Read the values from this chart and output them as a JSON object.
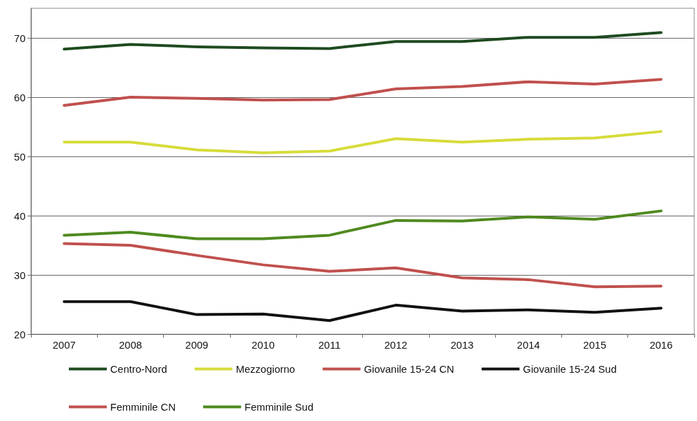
{
  "chart_data": {
    "type": "line",
    "categories": [
      "2007",
      "2008",
      "2009",
      "2010",
      "2011",
      "2012",
      "2013",
      "2014",
      "2015",
      "2016"
    ],
    "series": [
      {
        "name": "Centro-Nord",
        "color": "#1e4a20",
        "values": [
          68.1,
          68.9,
          68.5,
          68.3,
          68.2,
          69.4,
          69.4,
          70.1,
          70.1,
          70.9
        ]
      },
      {
        "name": "Mezzogiorno",
        "color": "#d6dc3a",
        "values": [
          52.4,
          52.4,
          51.1,
          50.6,
          50.9,
          53.0,
          52.4,
          52.9,
          53.1,
          54.2
        ]
      },
      {
        "name": "Giovanile 15-24 CN",
        "color": "#c0504d",
        "values": [
          35.3,
          35.0,
          33.3,
          31.7,
          30.6,
          31.2,
          29.5,
          29.2,
          28.0,
          28.1
        ]
      },
      {
        "name": "Giovanile 15-24 Sud",
        "color": "#111111",
        "values": [
          25.5,
          25.5,
          23.3,
          23.4,
          22.3,
          24.9,
          23.9,
          24.1,
          23.7,
          24.4
        ]
      },
      {
        "name": "Femminile CN",
        "color": "#c0504d",
        "values": [
          58.6,
          60.0,
          59.8,
          59.5,
          59.6,
          61.4,
          61.8,
          62.6,
          62.2,
          63.0
        ]
      },
      {
        "name": "Femminile Sud",
        "color": "#4e8a1e",
        "values": [
          36.7,
          37.2,
          36.1,
          36.1,
          36.7,
          39.2,
          39.1,
          39.8,
          39.4,
          40.8
        ]
      }
    ],
    "ylim": [
      20,
      75
    ],
    "yticks": [
      20,
      30,
      40,
      50,
      60,
      70
    ],
    "grid": "y",
    "legend": "bottom",
    "marker": "none",
    "line_style": "solid"
  }
}
